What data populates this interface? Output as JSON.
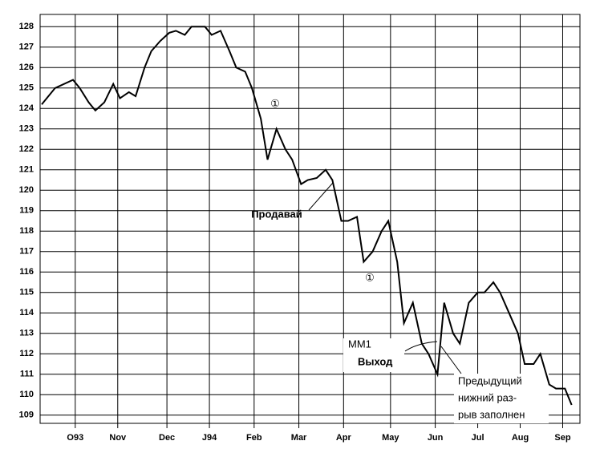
{
  "chart_data": {
    "type": "line",
    "x": [
      0,
      6,
      14,
      17,
      21,
      24,
      28,
      32,
      35,
      39,
      42,
      46,
      49,
      53,
      57,
      60,
      64,
      67,
      73,
      76,
      80,
      84,
      87,
      91,
      94,
      98,
      101,
      105,
      109,
      112,
      116,
      119,
      123,
      127,
      130,
      134,
      137,
      141,
      144,
      148,
      152,
      155,
      159,
      162,
      166,
      170,
      173,
      177,
      180,
      184,
      187,
      191,
      195,
      198,
      202,
      205,
      209,
      213,
      216,
      220,
      223,
      227,
      230,
      234,
      237
    ],
    "series": [
      {
        "color": "#000000",
        "values": [
          124.2,
          125,
          125.4,
          125,
          124.3,
          123.9,
          124.3,
          125.2,
          124.5,
          124.8,
          124.6,
          126,
          126.8,
          127.3,
          127.7,
          127.8,
          127.6,
          128,
          128,
          127.6,
          127.8,
          126.8,
          126,
          125.8,
          125,
          123.5,
          121.5,
          123,
          122,
          121.5,
          120.3,
          120.5,
          120.6,
          121,
          120.5,
          118.5,
          118.5,
          118.7,
          116.5,
          117,
          118,
          118.5,
          116.5,
          113.5,
          114.5,
          112.5,
          112,
          111,
          114.5,
          113,
          112.5,
          114.5,
          115,
          115,
          115.5,
          115,
          114,
          113,
          111.5,
          111.5,
          112,
          110.5,
          110.3,
          110.3,
          109.5
        ]
      }
    ],
    "xlim": [
      0,
      240
    ],
    "xticks": [
      {
        "value": 15,
        "label": "O93"
      },
      {
        "value": 34,
        "label": "Nov"
      },
      {
        "value": 56,
        "label": "Dec"
      },
      {
        "value": 75,
        "label": "J94"
      },
      {
        "value": 95,
        "label": "Feb"
      },
      {
        "value": 115,
        "label": "Mar"
      },
      {
        "value": 135,
        "label": "Apr"
      },
      {
        "value": 156,
        "label": "May"
      },
      {
        "value": 176,
        "label": "Jun"
      },
      {
        "value": 195,
        "label": "Jul"
      },
      {
        "value": 214,
        "label": "Aug"
      },
      {
        "value": 233,
        "label": "Sep"
      }
    ],
    "ylim": [
      108.6,
      128.6
    ],
    "yticks": [
      109,
      110,
      111,
      112,
      113,
      114,
      115,
      116,
      117,
      118,
      119,
      120,
      121,
      122,
      123,
      124,
      125,
      126,
      127,
      128
    ],
    "grid": true,
    "annotations": [
      "①",
      "Продавай",
      "①",
      "MM1",
      "Выход",
      "Предыдущий",
      "нижний раз-",
      "рыв заполнен"
    ]
  }
}
